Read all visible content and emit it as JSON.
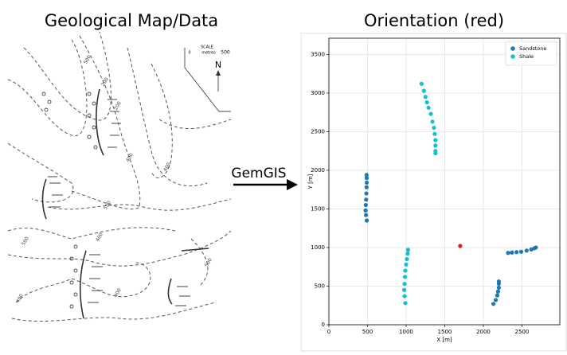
{
  "left_title": "Geological Map/Data",
  "arrow_label": "GemGIS",
  "map": {
    "scale_title": "SCALE",
    "scale_unit": "metres",
    "scale_start": "0",
    "scale_end": "500",
    "north": "N",
    "contour_labels": [
      "500",
      "200",
      "200",
      "400",
      "400",
      "500",
      "500",
      "400",
      "400",
      "500",
      "400"
    ]
  },
  "chart_data": {
    "type": "scatter",
    "title": "Orientation (red)",
    "x_label": "X [m]",
    "y_label": "Y [m]",
    "xlim": [
      0,
      2990
    ],
    "ylim": [
      0,
      3710
    ],
    "xticks": [
      0,
      500,
      1000,
      1500,
      2000,
      2500
    ],
    "yticks": [
      0,
      500,
      1000,
      1500,
      2000,
      2500,
      3000,
      3500
    ],
    "grid": true,
    "legend": "upper right",
    "series": [
      {
        "name": "Sandstone",
        "color": "#1f77b4",
        "x": [
          490,
          480,
          475,
          478,
          482,
          485,
          488,
          490,
          490,
          488,
          2130,
          2160,
          2180,
          2190,
          2200,
          2200,
          2200,
          2320,
          2370,
          2430,
          2490,
          2560,
          2620,
          2660,
          2680
        ],
        "values": [
          1350,
          1420,
          1480,
          1550,
          1620,
          1700,
          1780,
          1840,
          1900,
          1940,
          270,
          320,
          380,
          430,
          480,
          530,
          560,
          930,
          935,
          940,
          945,
          960,
          975,
          990,
          1000
        ]
      },
      {
        "name": "Shale",
        "color": "#17becf",
        "x": [
          1200,
          1230,
          1250,
          1270,
          1290,
          1320,
          1340,
          1360,
          1370,
          1380,
          1380,
          1380,
          1380,
          990,
          980,
          975,
          980,
          985,
          990,
          1000,
          1010,
          1020,
          1025
        ],
        "values": [
          3120,
          3030,
          2950,
          2880,
          2810,
          2730,
          2630,
          2550,
          2470,
          2390,
          2320,
          2250,
          2220,
          280,
          370,
          450,
          530,
          620,
          700,
          780,
          850,
          920,
          970
        ]
      }
    ],
    "highlight": {
      "x": 1700,
      "y": 1020,
      "color": "#e41a1c"
    }
  }
}
